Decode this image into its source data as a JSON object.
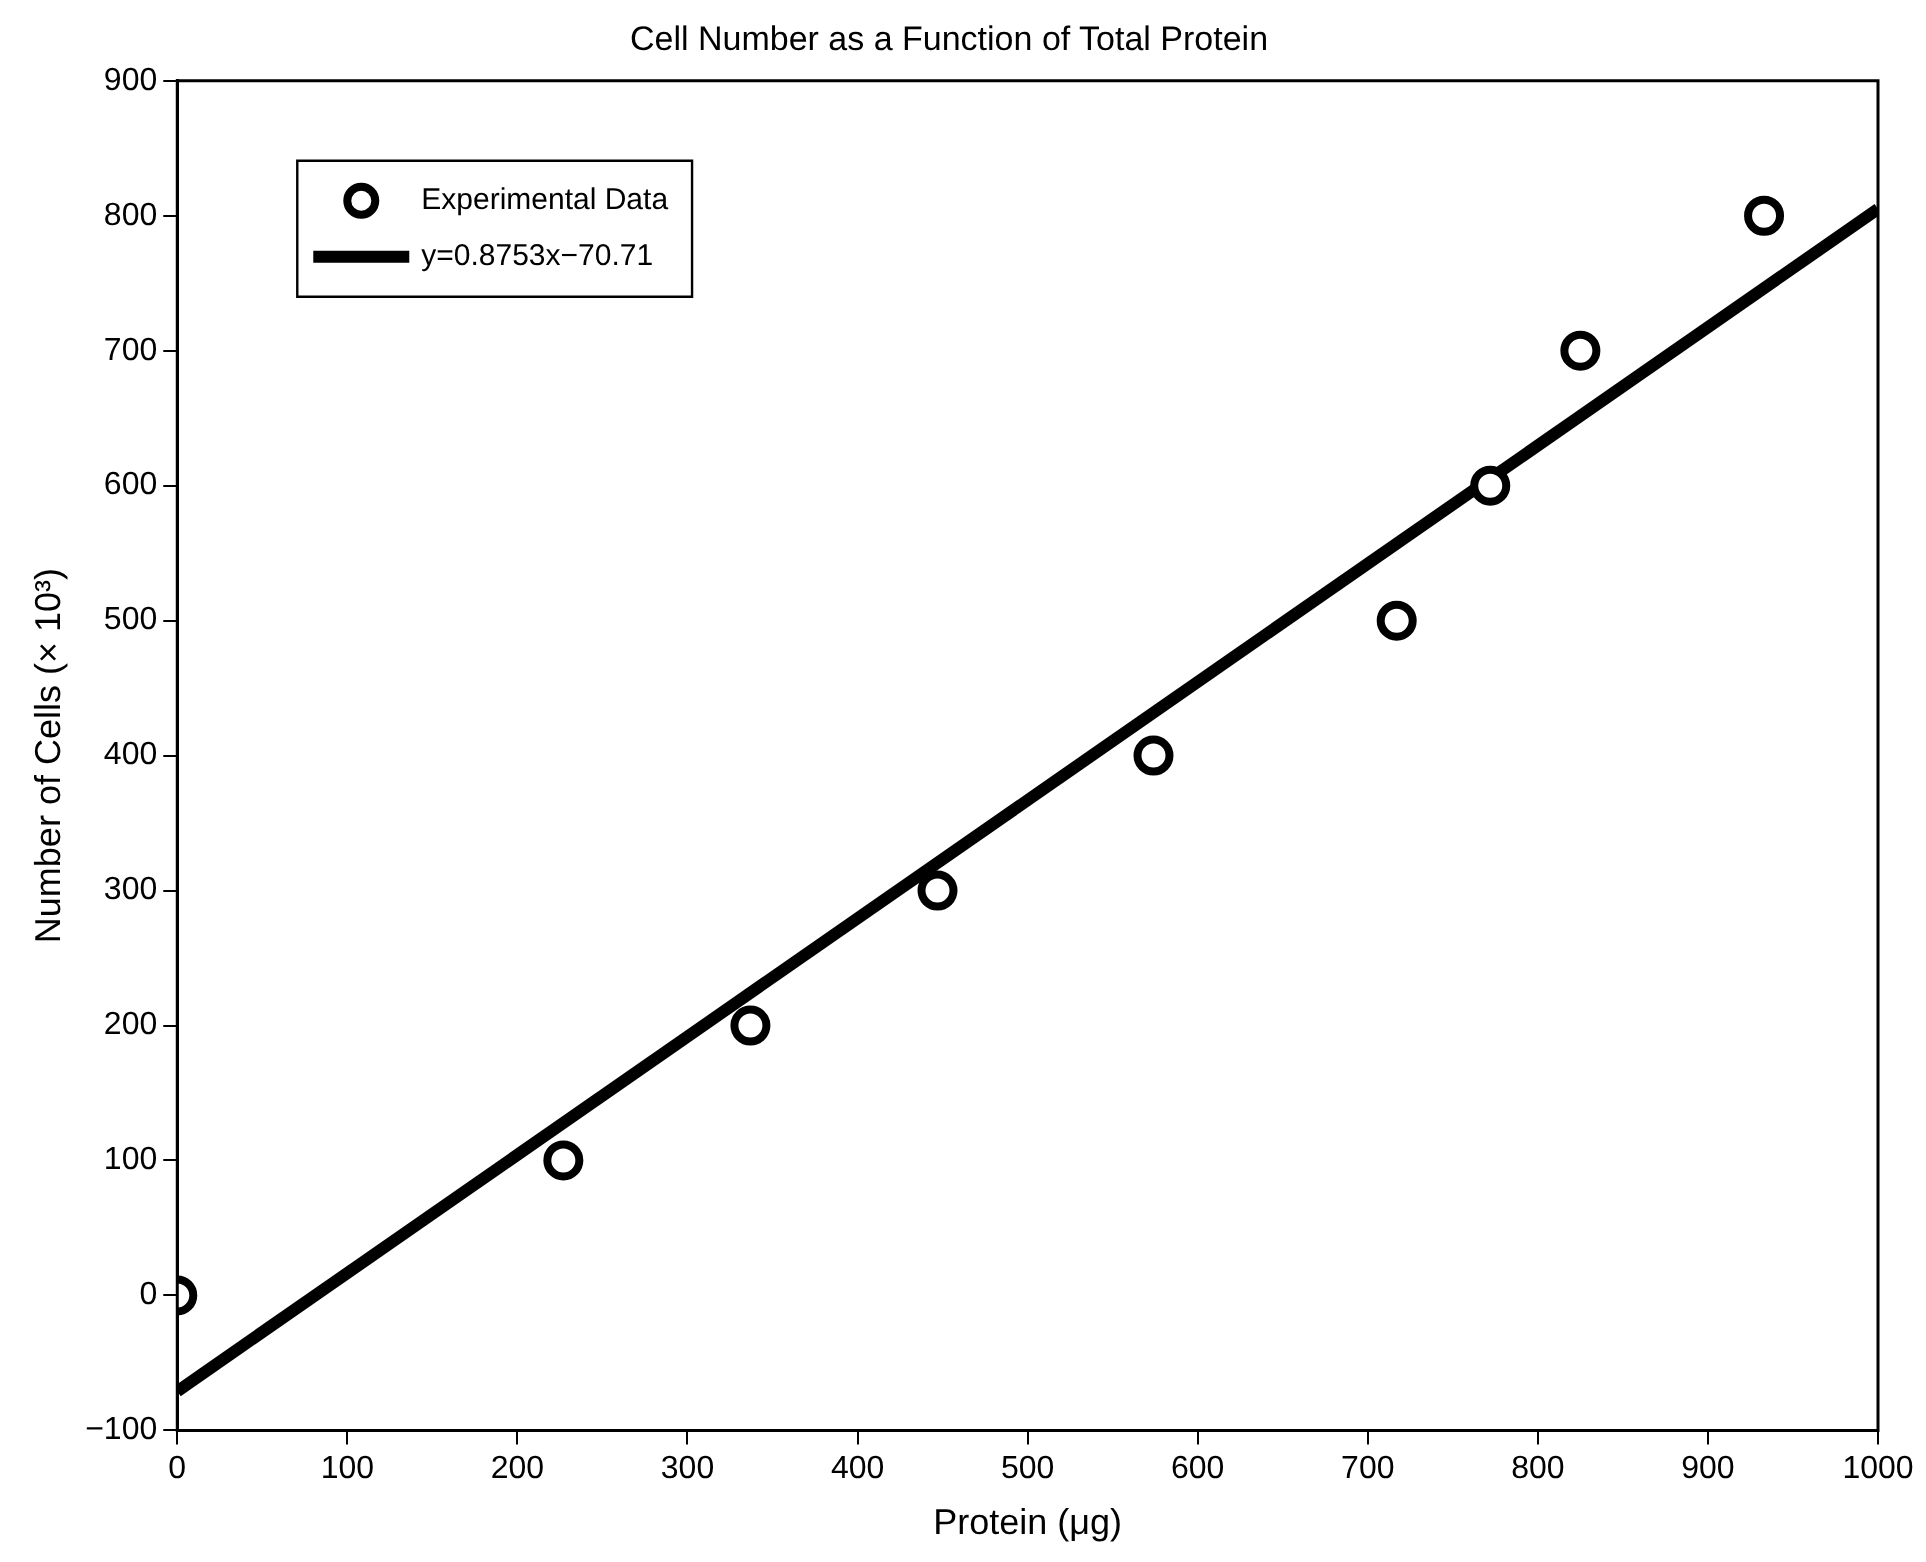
{
  "chart_data": {
    "type": "scatter",
    "title": "Cell Number as a Function of Total Protein",
    "xlabel": "Protein (μg)",
    "ylabel": "Number of Cells (× 10³)",
    "xlim": [
      0,
      1000
    ],
    "xticks": [
      0,
      100,
      200,
      300,
      400,
      500,
      600,
      700,
      800,
      900,
      1000
    ],
    "ylim": [
      -100,
      900
    ],
    "yticks": [
      -100,
      0,
      100,
      200,
      300,
      400,
      500,
      600,
      700,
      800,
      900
    ],
    "grid": false,
    "legend": "top left",
    "marker": "circle",
    "series": [
      {
        "name": "Experimental Data",
        "type": "scatter",
        "color": "#000000",
        "x": [
          0,
          227,
          337,
          447,
          574,
          717,
          772,
          825,
          933
        ],
        "values": [
          0,
          100,
          200,
          300,
          400,
          500,
          600,
          700,
          800
        ]
      },
      {
        "name": "y=0.8753x−70.71",
        "type": "line",
        "color": "#000000",
        "line_style": "solid",
        "marker": "none",
        "x": [
          0,
          1000
        ],
        "values": [
          -71,
          805
        ]
      }
    ]
  }
}
